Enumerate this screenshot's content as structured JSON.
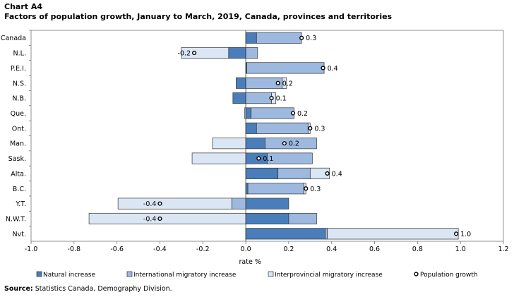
{
  "chart_label": "Chart A4",
  "chart_title": "Factors of population growth, January to March, 2019, Canada, provinces and territories",
  "source": {
    "prefix": "Source:",
    "text": "Statistics Canada, Demography Division."
  },
  "colors": {
    "natural": "#4a7ebb",
    "international": "#9db9e0",
    "interprovincial": "#dbe6f4",
    "outline": "#333333"
  },
  "chart_data": {
    "type": "bar",
    "orientation": "horizontal",
    "stacked": true,
    "xlabel": "rate %",
    "xlim": [
      -1.0,
      1.2
    ],
    "xticks": [
      "-1.0",
      "-0.8",
      "-0.6",
      "-0.4",
      "-0.2",
      "0.0",
      "0.2",
      "0.4",
      "0.6",
      "0.8",
      "1.0",
      "1.2"
    ],
    "grid": false,
    "legend_position": "bottom",
    "categories": [
      "Canada",
      "N.L.",
      "P.E.I.",
      "N.S.",
      "N.B.",
      "Que.",
      "Ont.",
      "Man.",
      "Sask.",
      "Alta.",
      "B.C.",
      "Y.T.",
      "N.W.T.",
      "Nvt."
    ],
    "series": [
      {
        "name": "Natural increase",
        "key": "natural",
        "values": [
          0.05,
          -0.08,
          0.005,
          -0.045,
          -0.06,
          0.025,
          0.05,
          0.09,
          0.1,
          0.15,
          0.01,
          0.2,
          0.2,
          0.37
        ]
      },
      {
        "name": "International migratory increase",
        "key": "international",
        "values": [
          0.21,
          0.055,
          0.36,
          0.17,
          0.12,
          0.2,
          0.24,
          0.24,
          0.21,
          0.15,
          0.26,
          -0.065,
          0.13,
          0.01
        ]
      },
      {
        "name": "Interprovincial migratory increase",
        "key": "interprovincial",
        "values": [
          0.0,
          -0.22,
          0.0,
          0.02,
          0.02,
          -0.005,
          0.01,
          -0.155,
          -0.25,
          0.09,
          0.01,
          -0.53,
          -0.73,
          0.61
        ]
      }
    ],
    "population_growth": {
      "name": "Population growth",
      "values": [
        0.26,
        -0.24,
        0.36,
        0.15,
        0.12,
        0.22,
        0.3,
        0.18,
        0.06,
        0.38,
        0.28,
        -0.4,
        -0.4,
        0.98
      ],
      "labels": [
        "0.3",
        "-0.2",
        "0.4",
        "0.2",
        "0.1",
        "0.2",
        "0.3",
        "0.2",
        "0.1",
        "0.4",
        "0.3",
        "-0.4",
        "-0.4",
        "1.0"
      ]
    }
  }
}
